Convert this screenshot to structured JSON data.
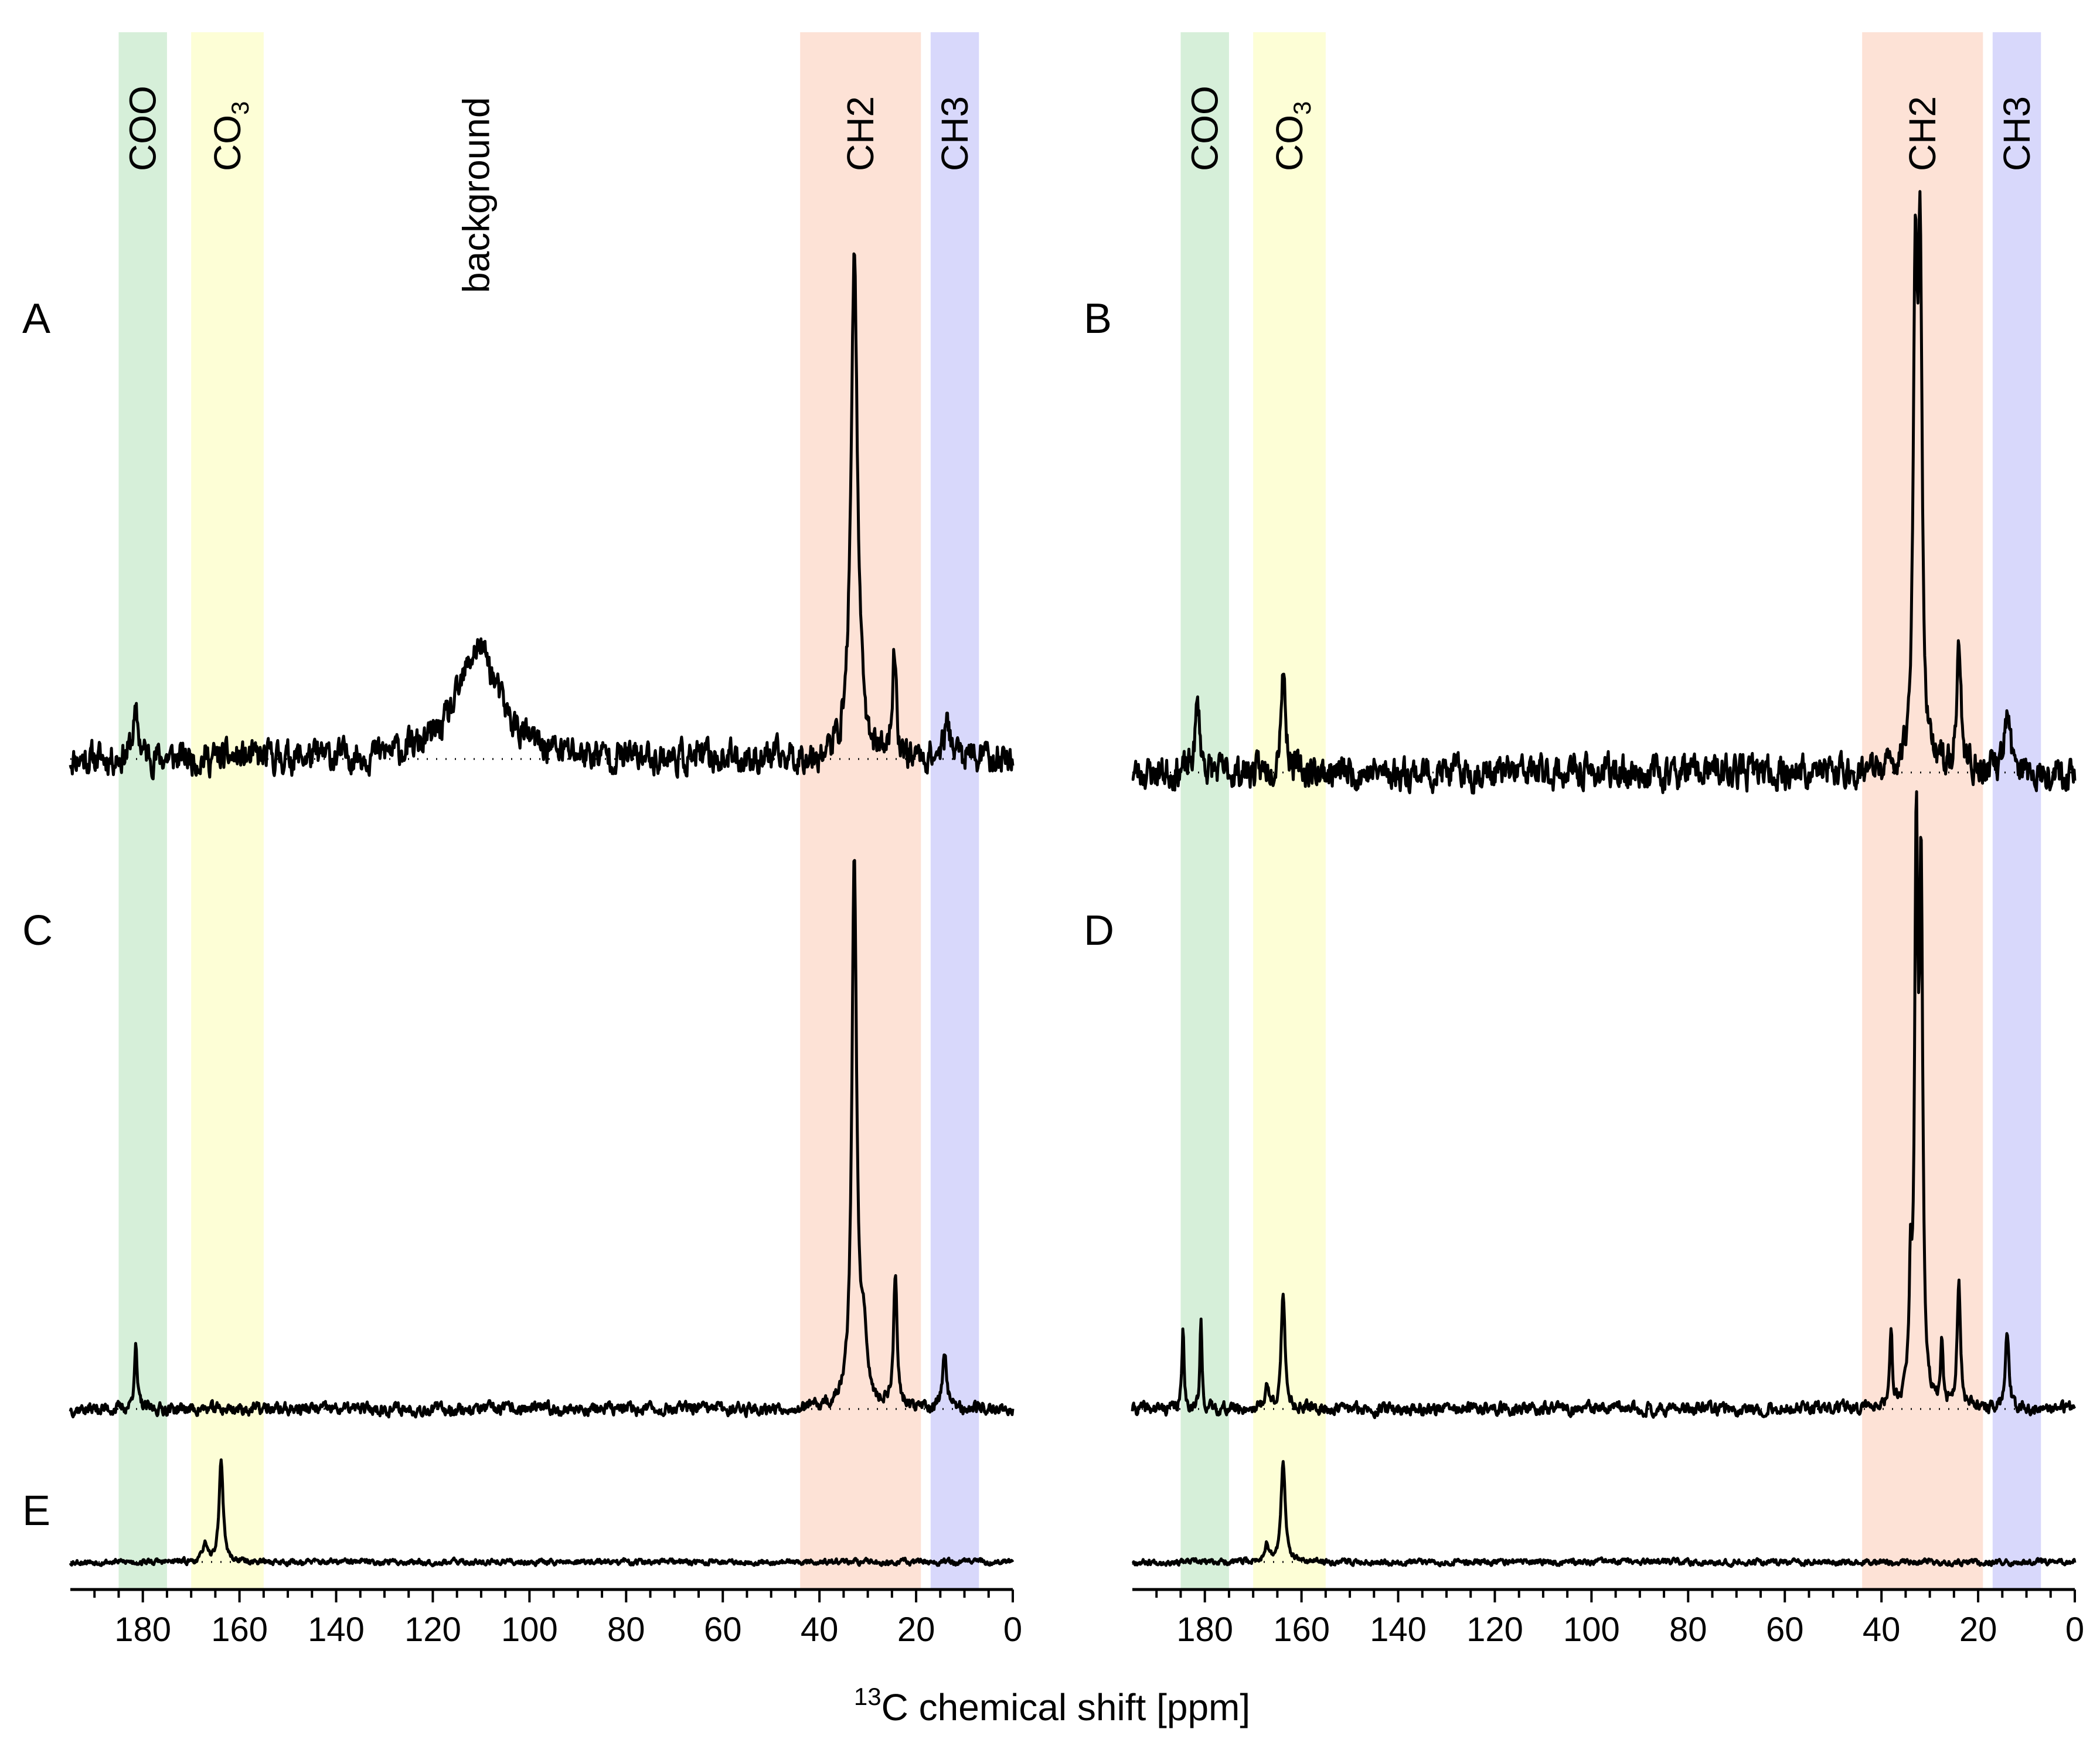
{
  "chart_data": {
    "type": "line",
    "title": "",
    "xlabel": {
      "sup": "13",
      "text": "C chemical shift [ppm]"
    },
    "xlim": [
      195,
      0
    ],
    "x_ticks": [
      180,
      160,
      140,
      120,
      100,
      80,
      60,
      40,
      20,
      0
    ],
    "y_ticks_shown": false,
    "region_bands": [
      {
        "name": "COO",
        "label": "COO",
        "sub": "",
        "from": 185,
        "to": 175,
        "color": "#d6efd9"
      },
      {
        "name": "CO3",
        "label": "CO",
        "sub": "3",
        "from": 170,
        "to": 155,
        "color": "#fdfed6"
      },
      {
        "name": "CH2",
        "label": "CH2",
        "sub": "",
        "from": 44,
        "to": 19,
        "color": "#fde2d6"
      },
      {
        "name": "CH3",
        "label": "CH3",
        "sub": "",
        "from": 17,
        "to": 7,
        "color": "#d8d8fb"
      }
    ],
    "annotation": {
      "text": "background",
      "x": 111,
      "column": "left"
    },
    "columns": [
      {
        "name": "left",
        "spectra": [
          "A",
          "C",
          "E"
        ]
      },
      {
        "name": "right",
        "spectra": [
          "B",
          "D",
          "E2"
        ]
      }
    ],
    "series": [
      {
        "name": "A",
        "label": "A",
        "column": "left",
        "show_label": true,
        "noise": 0.055,
        "seed": 11,
        "peaks": [
          {
            "x": 32.8,
            "h": 1.0,
            "w": 0.8
          },
          {
            "x": 24.5,
            "h": 0.2,
            "w": 0.5
          },
          {
            "x": 110.5,
            "h": 0.22,
            "w": 5
          },
          {
            "x": 181.5,
            "h": 0.08,
            "w": 0.8
          },
          {
            "x": 13.5,
            "h": 0.06,
            "w": 1
          }
        ]
      },
      {
        "name": "B",
        "label": "B",
        "column": "right",
        "show_label": true,
        "noise": 0.055,
        "seed": 23,
        "peaks": [
          {
            "x": 33.0,
            "h": 0.9,
            "w": 0.5
          },
          {
            "x": 32.0,
            "h": 0.9,
            "w": 0.5
          },
          {
            "x": 24.0,
            "h": 0.22,
            "w": 0.6
          },
          {
            "x": 14.0,
            "h": 0.1,
            "w": 0.8
          },
          {
            "x": 163.8,
            "h": 0.2,
            "w": 0.6
          },
          {
            "x": 181.5,
            "h": 0.13,
            "w": 0.6
          }
        ]
      },
      {
        "name": "C",
        "label": "C",
        "column": "left",
        "show_label": true,
        "noise": 0.02,
        "seed": 37,
        "peaks": [
          {
            "x": 32.8,
            "h": 1.0,
            "w": 0.6
          },
          {
            "x": 30.8,
            "h": 0.12,
            "w": 0.8
          },
          {
            "x": 24.3,
            "h": 0.24,
            "w": 0.45
          },
          {
            "x": 14.1,
            "h": 0.11,
            "w": 0.5
          },
          {
            "x": 181.5,
            "h": 0.12,
            "w": 0.35
          }
        ]
      },
      {
        "name": "D",
        "label": "D",
        "column": "right",
        "show_label": true,
        "noise": 0.02,
        "seed": 41,
        "peaks": [
          {
            "x": 32.8,
            "h": 1.0,
            "w": 0.4
          },
          {
            "x": 31.8,
            "h": 0.93,
            "w": 0.4
          },
          {
            "x": 34.0,
            "h": 0.22,
            "w": 0.3
          },
          {
            "x": 38.0,
            "h": 0.14,
            "w": 0.3
          },
          {
            "x": 27.5,
            "h": 0.12,
            "w": 0.3
          },
          {
            "x": 24.0,
            "h": 0.24,
            "w": 0.4
          },
          {
            "x": 14.0,
            "h": 0.14,
            "w": 0.45
          },
          {
            "x": 163.8,
            "h": 0.2,
            "w": 0.5
          },
          {
            "x": 167.2,
            "h": 0.04,
            "w": 0.5
          },
          {
            "x": 184.5,
            "h": 0.16,
            "w": 0.25
          },
          {
            "x": 180.8,
            "h": 0.16,
            "w": 0.25
          }
        ]
      },
      {
        "name": "E",
        "label": "E",
        "column": "left",
        "show_label": true,
        "noise": 0.05,
        "seed": 53,
        "peaks": [
          {
            "x": 163.8,
            "h": 1.0,
            "w": 0.5
          },
          {
            "x": 167.2,
            "h": 0.18,
            "w": 0.5
          }
        ]
      },
      {
        "name": "E2",
        "label": "E",
        "column": "right",
        "show_label": false,
        "noise": 0.05,
        "seed": 67,
        "peaks": [
          {
            "x": 163.8,
            "h": 1.0,
            "w": 0.5
          },
          {
            "x": 167.2,
            "h": 0.18,
            "w": 0.5
          }
        ]
      }
    ]
  }
}
